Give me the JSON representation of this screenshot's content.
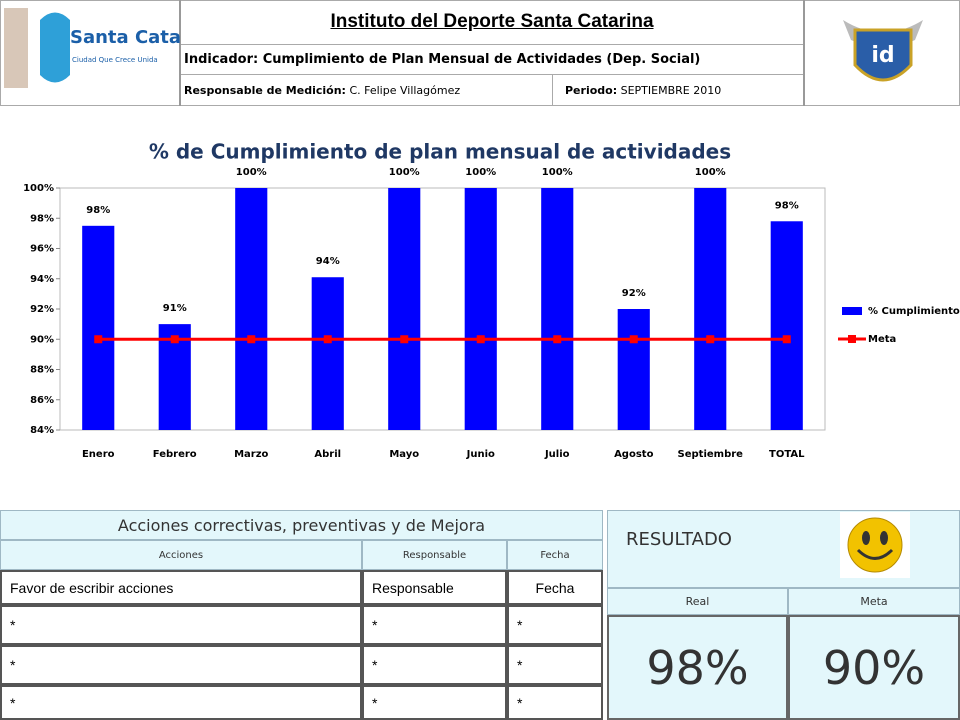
{
  "header": {
    "title": "Instituto del Deporte Santa Catarina",
    "indicator": "Indicador: Cumplimiento de Plan Mensual de Actividades (Dep. Social)",
    "responsible_label": "Responsable de Medición:",
    "responsible_value": "C. Felipe Villagómez",
    "period_label": "Periodo:",
    "period_value": "SEPTIEMBRE 2010",
    "logo_left_name": "Santa Catarina",
    "logo_left_slogan": "Ciudad Que Crece Unida",
    "logo_right_name": "id"
  },
  "chart_data": {
    "type": "bar",
    "title": "% de Cumplimiento de plan mensual de actividades",
    "categories": [
      "Enero",
      "Febrero",
      "Marzo",
      "Abril",
      "Mayo",
      "Junio",
      "Julio",
      "Agosto",
      "Septiembre",
      "TOTAL"
    ],
    "series": [
      {
        "name": "% Cumplimiento",
        "color": "#0000ff",
        "values": [
          97.5,
          91,
          100,
          94.1,
          100,
          100,
          100,
          92,
          100,
          97.8
        ],
        "value_labels": [
          "98%",
          "91%",
          "100%",
          "94%",
          "100%",
          "100%",
          "100%",
          "92%",
          "100%",
          "98%"
        ]
      },
      {
        "name": "Meta",
        "color": "#ff0000",
        "type": "line",
        "values": [
          90,
          90,
          90,
          90,
          90,
          90,
          90,
          90,
          90,
          90
        ]
      }
    ],
    "ylim": [
      84,
      100
    ],
    "yticks": [
      {
        "value": 84,
        "label": "84%"
      },
      {
        "value": 86,
        "label": "86%"
      },
      {
        "value": 88,
        "label": "88%"
      },
      {
        "value": 90,
        "label": "90%"
      },
      {
        "value": 92,
        "label": "92%"
      },
      {
        "value": 94,
        "label": "94%"
      },
      {
        "value": 96,
        "label": "96%"
      },
      {
        "value": 98,
        "label": "98%"
      },
      {
        "value": 100,
        "label": "100%"
      }
    ],
    "grid": false,
    "legend": "right"
  },
  "actions_table": {
    "title": "Acciones correctivas, preventivas y de Mejora",
    "headers": [
      "Acciones",
      "Responsable",
      "Fecha"
    ],
    "rows": [
      [
        "Favor de escribir acciones",
        "Responsable",
        "Fecha"
      ],
      [
        "*",
        "*",
        "*"
      ],
      [
        "*",
        "*",
        "*"
      ],
      [
        "*",
        "*",
        "*"
      ]
    ]
  },
  "result": {
    "title": "RESULTADO",
    "headers": [
      "Real",
      "Meta"
    ],
    "values": [
      "98%",
      "90%"
    ]
  }
}
